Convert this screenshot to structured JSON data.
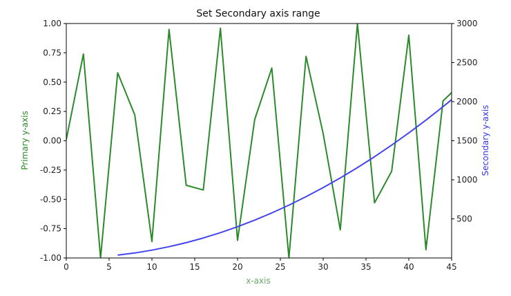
{
  "chart_data": {
    "type": "line",
    "title": "Set Secondary axis range",
    "xlabel": "x-axis",
    "ylabel": "Primary y-axis",
    "y2label": "Secondary y-axis",
    "xlim": [
      0,
      45
    ],
    "ylim": [
      -1.0,
      1.0
    ],
    "y2lim": [
      0,
      3000
    ],
    "xticks": [
      "0",
      "5",
      "10",
      "15",
      "20",
      "25",
      "30",
      "35",
      "40",
      "45"
    ],
    "yticks": [
      "-1.00",
      "-0.75",
      "-0.50",
      "-0.25",
      "0.00",
      "0.25",
      "0.50",
      "0.75",
      "1.00"
    ],
    "y2ticks": [
      "500",
      "1000",
      "1500",
      "2000",
      "2500",
      "3000"
    ],
    "grid": false,
    "series": [
      {
        "axis": "primary",
        "color": "#2a8a2a",
        "x": [
          0,
          2,
          4,
          6,
          8,
          10,
          12,
          14,
          16,
          18,
          20,
          22,
          24,
          26,
          28,
          30,
          32,
          34,
          36,
          38,
          40,
          42,
          44,
          45
        ],
        "values": [
          0.01,
          0.74,
          -1.0,
          0.58,
          0.22,
          -0.86,
          0.95,
          -0.38,
          -0.42,
          0.96,
          -0.85,
          0.18,
          0.62,
          -1.0,
          0.72,
          0.06,
          -0.76,
          1.0,
          -0.53,
          -0.26,
          0.9,
          -0.93,
          0.34,
          0.41
        ]
      },
      {
        "axis": "secondary",
        "color": "#4444ee",
        "x": [
          6,
          8,
          10,
          12,
          14,
          16,
          18,
          20,
          22,
          24,
          26,
          28,
          30,
          32,
          34,
          36,
          38,
          40,
          42,
          44,
          45
        ],
        "values": [
          36,
          64,
          100,
          144,
          196,
          256,
          324,
          400,
          484,
          576,
          676,
          784,
          900,
          1024,
          1156,
          1296,
          1444,
          1600,
          1764,
          1936,
          2025
        ]
      }
    ],
    "colors": {
      "xlabel": "#66aa66",
      "ylabel": "#2a8a2a",
      "y2label": "#3333ee",
      "axis": "#000000"
    }
  }
}
